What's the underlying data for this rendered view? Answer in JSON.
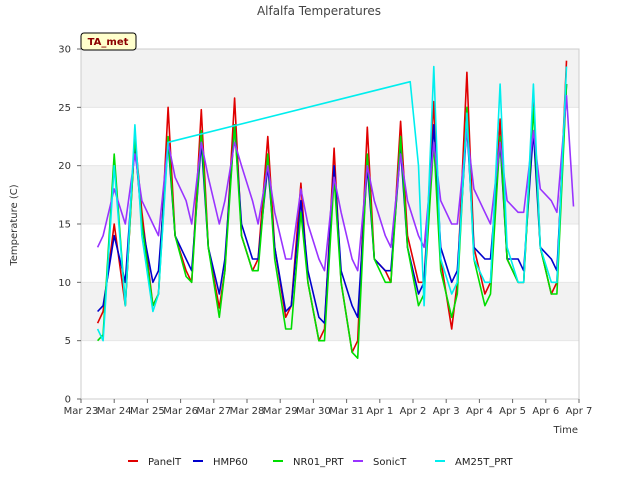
{
  "chart_data": {
    "type": "line",
    "title": "Alfalfa Temperatures",
    "site_tag": "TA_met",
    "xlabel": "Time",
    "ylabel": "Temperature (C)",
    "ylim": [
      0,
      30
    ],
    "yticks": [
      0,
      5,
      10,
      15,
      20,
      25,
      30
    ],
    "xlim": [
      "2023-03-23",
      "2023-04-07"
    ],
    "xticks": [
      {
        "date": "2023-03-23",
        "label": "Mar 23"
      },
      {
        "date": "2023-03-24",
        "label": "Mar 24"
      },
      {
        "date": "2023-03-25",
        "label": "Mar 25"
      },
      {
        "date": "2023-03-26",
        "label": "Mar 26"
      },
      {
        "date": "2023-03-27",
        "label": "Mar 27"
      },
      {
        "date": "2023-03-28",
        "label": "Mar 28"
      },
      {
        "date": "2023-03-29",
        "label": "Mar 29"
      },
      {
        "date": "2023-03-30",
        "label": "Mar 30"
      },
      {
        "date": "2023-03-31",
        "label": "Mar 31"
      },
      {
        "date": "2023-04-01",
        "label": "Apr 1"
      },
      {
        "date": "2023-04-02",
        "label": "Apr 2"
      },
      {
        "date": "2023-04-03",
        "label": "Apr 3"
      },
      {
        "date": "2023-04-04",
        "label": "Apr 4"
      },
      {
        "date": "2023-04-05",
        "label": "Apr 5"
      },
      {
        "date": "2023-04-06",
        "label": "Apr 6"
      },
      {
        "date": "2023-04-07",
        "label": "Apr 7"
      }
    ],
    "grid": "horizontal bands",
    "legend_position": "bottom",
    "series": [
      {
        "name": "PanelT",
        "color": "#e00000",
        "x": [
          "2023-03-23 12:00",
          "2023-03-23 16:00",
          "2023-03-24 00:00",
          "2023-03-24 08:00",
          "2023-03-24 15:00",
          "2023-03-24 20:00",
          "2023-03-25 04:00",
          "2023-03-25 08:00",
          "2023-03-25 15:00",
          "2023-03-25 20:00",
          "2023-03-26 04:00",
          "2023-03-26 08:00",
          "2023-03-26 15:00",
          "2023-03-26 20:00",
          "2023-03-27 04:00",
          "2023-03-27 08:00",
          "2023-03-27 15:00",
          "2023-03-27 20:00",
          "2023-03-28 04:00",
          "2023-03-28 08:00",
          "2023-03-28 15:00",
          "2023-03-28 20:00",
          "2023-03-29 04:00",
          "2023-03-29 08:00",
          "2023-03-29 15:00",
          "2023-03-29 20:00",
          "2023-03-30 04:00",
          "2023-03-30 08:00",
          "2023-03-30 15:00",
          "2023-03-30 20:00",
          "2023-03-31 04:00",
          "2023-03-31 08:00",
          "2023-03-31 15:00",
          "2023-03-31 20:00",
          "2023-04-01 04:00",
          "2023-04-01 08:00",
          "2023-04-01 15:00",
          "2023-04-01 20:00",
          "2023-04-02 04:00",
          "2023-04-02 08:00",
          "2023-04-02 15:00",
          "2023-04-02 20:00",
          "2023-04-03 04:00",
          "2023-04-03 08:00",
          "2023-04-03 15:00",
          "2023-04-03 20:00",
          "2023-04-04 04:00",
          "2023-04-04 08:00",
          "2023-04-04 15:00",
          "2023-04-04 20:00",
          "2023-04-05 04:00",
          "2023-04-05 08:00",
          "2023-04-05 15:00",
          "2023-04-05 20:00",
          "2023-04-06 04:00",
          "2023-04-06 08:00",
          "2023-04-06 15:00"
        ],
        "y": [
          6.5,
          7.5,
          15,
          8,
          22.5,
          16,
          8,
          9,
          25,
          14,
          11,
          10,
          24.8,
          13,
          7.8,
          11,
          25.8,
          14,
          11,
          12,
          22.5,
          13,
          7,
          8,
          18.5,
          10,
          5,
          6,
          21.5,
          10,
          4,
          5,
          23.3,
          12,
          11,
          10,
          23.8,
          14,
          10,
          10,
          25.5,
          12,
          6,
          10,
          28,
          13,
          9,
          10,
          24,
          12,
          10,
          10,
          26,
          13,
          9,
          10,
          29
        ]
      },
      {
        "name": "HMP60",
        "color": "#0000cc",
        "x": [
          "2023-03-23 12:00",
          "2023-03-23 16:00",
          "2023-03-24 00:00",
          "2023-03-24 08:00",
          "2023-03-24 15:00",
          "2023-03-24 20:00",
          "2023-03-25 04:00",
          "2023-03-25 08:00",
          "2023-03-25 15:00",
          "2023-03-25 20:00",
          "2023-03-26 04:00",
          "2023-03-26 08:00",
          "2023-03-26 15:00",
          "2023-03-26 20:00",
          "2023-03-27 04:00",
          "2023-03-27 08:00",
          "2023-03-27 15:00",
          "2023-03-27 20:00",
          "2023-03-28 04:00",
          "2023-03-28 08:00",
          "2023-03-28 15:00",
          "2023-03-28 20:00",
          "2023-03-29 04:00",
          "2023-03-29 08:00",
          "2023-03-29 15:00",
          "2023-03-29 20:00",
          "2023-03-30 04:00",
          "2023-03-30 08:00",
          "2023-03-30 15:00",
          "2023-03-30 20:00",
          "2023-03-31 04:00",
          "2023-03-31 08:00",
          "2023-03-31 15:00",
          "2023-03-31 20:00",
          "2023-04-01 04:00",
          "2023-04-01 08:00",
          "2023-04-01 15:00",
          "2023-04-01 20:00",
          "2023-04-02 04:00",
          "2023-04-02 08:00",
          "2023-04-02 15:00",
          "2023-04-02 20:00",
          "2023-04-03 04:00",
          "2023-04-03 08:00",
          "2023-04-03 15:00",
          "2023-04-03 20:00",
          "2023-04-04 04:00",
          "2023-04-04 08:00",
          "2023-04-04 15:00",
          "2023-04-04 20:00",
          "2023-04-05 04:00",
          "2023-04-05 08:00",
          "2023-04-05 15:00",
          "2023-04-05 20:00",
          "2023-04-06 04:00",
          "2023-04-06 08:00",
          "2023-04-06 15:00"
        ],
        "y": [
          7.5,
          8,
          14,
          10,
          22,
          15,
          10,
          11,
          22,
          14,
          12,
          11,
          22,
          13,
          9,
          12,
          23.5,
          15,
          12,
          12,
          20,
          13,
          7.5,
          8,
          17,
          11,
          7,
          6.5,
          20,
          11,
          8,
          7,
          20,
          12,
          11,
          11,
          21.5,
          13,
          9,
          10,
          23.5,
          13,
          10,
          11,
          23.5,
          13,
          12,
          12,
          22,
          12,
          12,
          11,
          23,
          13,
          12,
          11,
          27
        ]
      },
      {
        "name": "NR01_PRT",
        "color": "#00dd00",
        "x": [
          "2023-03-23 12:00",
          "2023-03-23 16:00",
          "2023-03-24 00:00",
          "2023-03-24 08:00",
          "2023-03-24 15:00",
          "2023-03-24 20:00",
          "2023-03-25 04:00",
          "2023-03-25 08:00",
          "2023-03-25 15:00",
          "2023-03-25 20:00",
          "2023-03-26 04:00",
          "2023-03-26 08:00",
          "2023-03-26 15:00",
          "2023-03-26 20:00",
          "2023-03-27 04:00",
          "2023-03-27 08:00",
          "2023-03-27 15:00",
          "2023-03-27 20:00",
          "2023-03-28 04:00",
          "2023-03-28 08:00",
          "2023-03-28 15:00",
          "2023-03-28 20:00",
          "2023-03-29 04:00",
          "2023-03-29 08:00",
          "2023-03-29 15:00",
          "2023-03-29 20:00",
          "2023-03-30 04:00",
          "2023-03-30 08:00",
          "2023-03-30 15:00",
          "2023-03-30 20:00",
          "2023-03-31 04:00",
          "2023-03-31 08:00",
          "2023-03-31 15:00",
          "2023-03-31 20:00",
          "2023-04-01 04:00",
          "2023-04-01 08:00",
          "2023-04-01 15:00",
          "2023-04-01 20:00",
          "2023-04-02 04:00",
          "2023-04-02 08:00",
          "2023-04-02 15:00",
          "2023-04-02 20:00",
          "2023-04-03 04:00",
          "2023-04-03 08:00",
          "2023-04-03 15:00",
          "2023-04-03 20:00",
          "2023-04-04 04:00",
          "2023-04-04 08:00",
          "2023-04-04 15:00",
          "2023-04-04 20:00",
          "2023-04-05 04:00",
          "2023-04-05 08:00",
          "2023-04-05 15:00",
          "2023-04-05 20:00",
          "2023-04-06 04:00",
          "2023-04-06 08:00",
          "2023-04-06 15:00"
        ],
        "y": [
          5,
          5.5,
          21,
          8,
          22.5,
          15,
          8,
          9,
          22.5,
          14,
          10.5,
          10,
          23,
          13,
          7,
          11,
          23.5,
          14,
          11,
          11,
          21,
          12,
          6,
          6,
          16,
          10,
          5,
          5,
          19,
          10,
          4,
          3.5,
          21,
          12,
          10,
          10,
          22.5,
          13,
          8,
          9,
          22,
          11,
          7,
          9,
          25,
          12,
          8,
          9,
          22.5,
          12,
          10,
          10,
          25,
          13,
          9,
          9,
          27
        ]
      },
      {
        "name": "SonicT",
        "color": "#9933ff",
        "x": [
          "2023-03-23 12:00",
          "2023-03-23 16:00",
          "2023-03-24 00:00",
          "2023-03-24 08:00",
          "2023-03-24 15:00",
          "2023-03-24 20:00",
          "2023-03-25 04:00",
          "2023-03-25 08:00",
          "2023-03-25 15:00",
          "2023-03-25 20:00",
          "2023-03-26 04:00",
          "2023-03-26 08:00",
          "2023-03-26 15:00",
          "2023-03-26 20:00",
          "2023-03-27 04:00",
          "2023-03-27 08:00",
          "2023-03-27 15:00",
          "2023-03-27 20:00",
          "2023-03-28 04:00",
          "2023-03-28 08:00",
          "2023-03-28 15:00",
          "2023-03-28 20:00",
          "2023-03-29 04:00",
          "2023-03-29 08:00",
          "2023-03-29 15:00",
          "2023-03-29 20:00",
          "2023-03-30 04:00",
          "2023-03-30 08:00",
          "2023-03-30 15:00",
          "2023-03-30 20:00",
          "2023-03-31 04:00",
          "2023-03-31 08:00",
          "2023-03-31 15:00",
          "2023-03-31 20:00",
          "2023-04-01 04:00",
          "2023-04-01 08:00",
          "2023-04-01 15:00",
          "2023-04-01 20:00",
          "2023-04-02 04:00",
          "2023-04-02 08:00",
          "2023-04-02 15:00",
          "2023-04-02 20:00",
          "2023-04-03 04:00",
          "2023-04-03 08:00",
          "2023-04-03 15:00",
          "2023-04-03 20:00",
          "2023-04-04 04:00",
          "2023-04-04 08:00",
          "2023-04-04 15:00",
          "2023-04-04 20:00",
          "2023-04-05 04:00",
          "2023-04-05 08:00",
          "2023-04-05 15:00",
          "2023-04-05 20:00",
          "2023-04-06 04:00",
          "2023-04-06 08:00",
          "2023-04-06 15:00",
          "2023-04-06 20:00"
        ],
        "y": [
          13,
          14,
          18,
          15,
          21,
          17,
          15,
          14,
          22,
          19,
          17,
          15,
          22,
          19,
          15,
          17,
          22,
          20,
          17,
          15,
          20,
          16,
          12,
          12,
          18,
          15,
          12,
          11,
          19,
          16,
          12,
          11,
          20,
          17,
          14,
          13,
          21,
          17,
          14,
          13,
          22,
          17,
          15,
          15,
          23,
          18,
          16,
          15,
          22,
          17,
          16,
          16,
          23,
          18,
          17,
          16,
          26,
          16.5
        ]
      },
      {
        "name": "AM25T_PRT",
        "color": "#00eeee",
        "x": [
          "2023-03-23 12:00",
          "2023-03-23 16:00",
          "2023-03-24 00:00",
          "2023-03-24 08:00",
          "2023-03-24 15:00",
          "2023-03-24 20:00",
          "2023-03-25 04:00",
          "2023-03-25 08:00",
          "2023-03-25 15:00",
          "2023-04-01 22:00",
          "2023-04-02 04:00",
          "2023-04-02 08:00",
          "2023-04-02 15:00",
          "2023-04-02 20:00",
          "2023-04-03 04:00",
          "2023-04-03 08:00",
          "2023-04-03 15:00",
          "2023-04-03 20:00",
          "2023-04-04 04:00",
          "2023-04-04 08:00",
          "2023-04-04 15:00",
          "2023-04-04 20:00",
          "2023-04-05 04:00",
          "2023-04-05 08:00",
          "2023-04-05 15:00",
          "2023-04-05 20:00",
          "2023-04-06 04:00",
          "2023-04-06 08:00",
          "2023-04-06 15:00"
        ],
        "y": [
          6,
          5,
          20,
          8,
          23.5,
          14,
          7.5,
          9,
          22,
          27.2,
          20,
          8,
          28.5,
          12,
          9,
          10,
          24.5,
          12,
          10,
          10,
          27,
          13,
          10,
          10,
          27,
          13,
          10,
          10,
          28.5
        ]
      }
    ]
  }
}
